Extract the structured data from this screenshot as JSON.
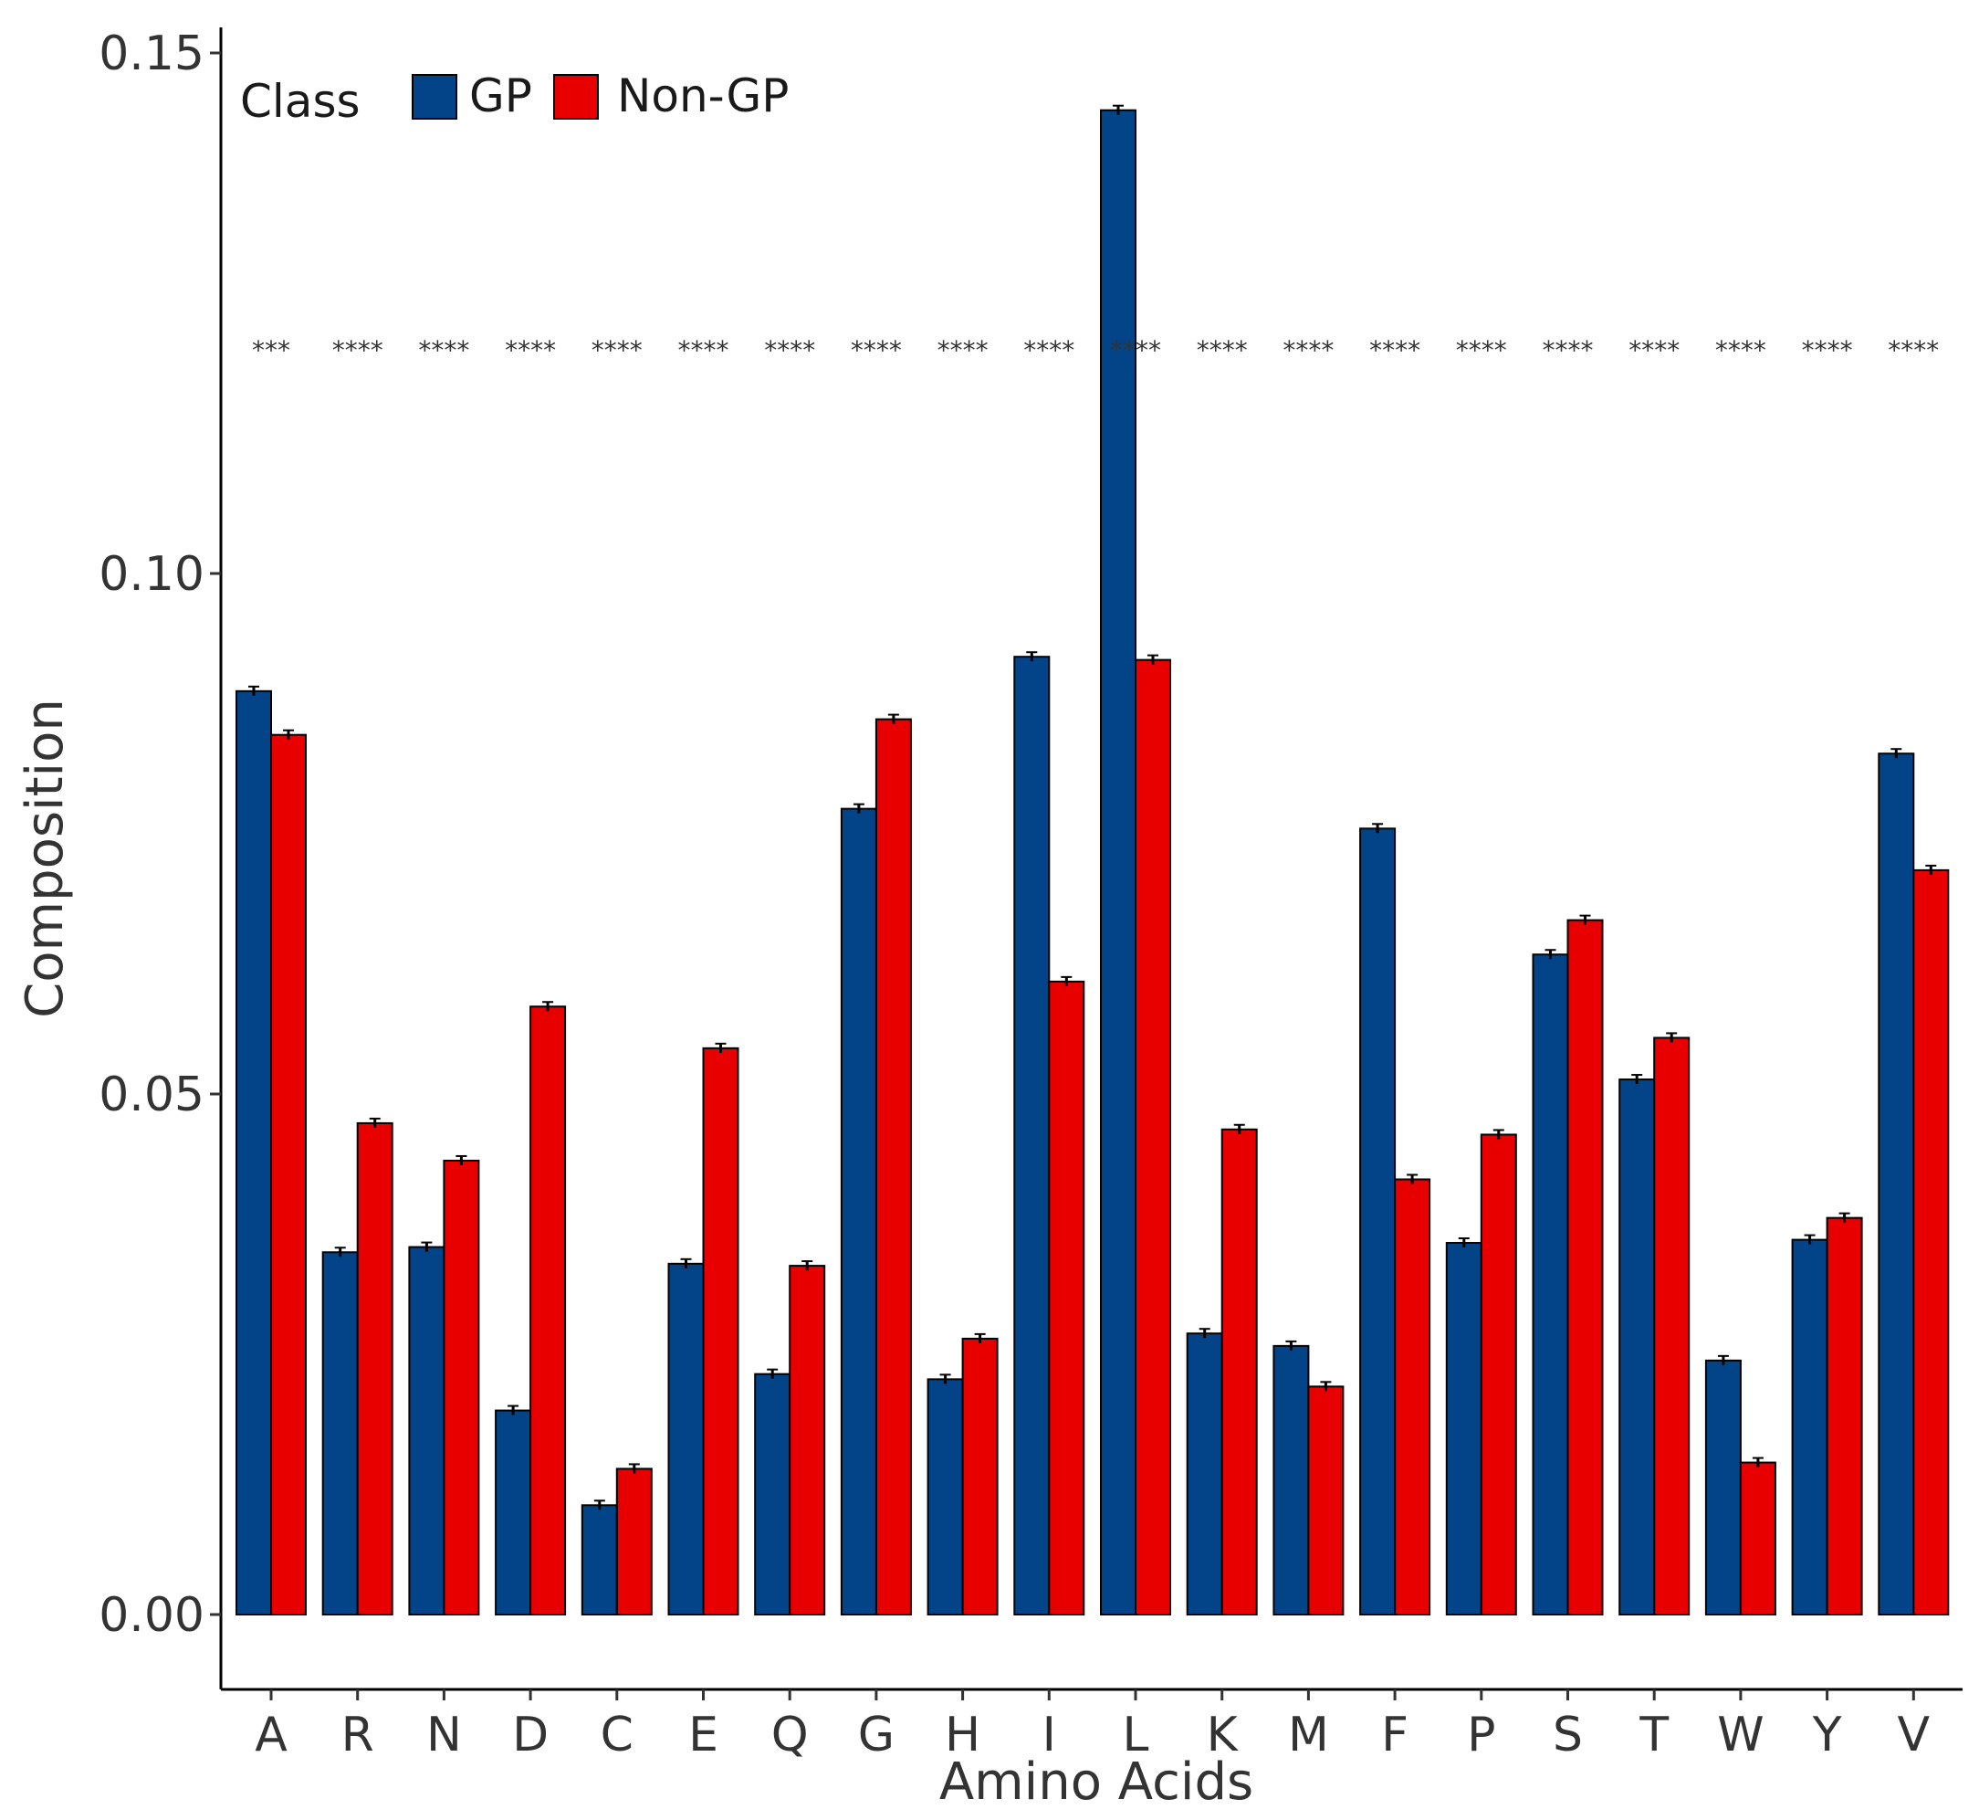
{
  "chart_data": {
    "type": "bar",
    "title": "",
    "xlabel": "Amino Acids",
    "ylabel": "Composition",
    "ylim": [
      -0.007,
      0.152
    ],
    "yticks": [
      "0.00",
      "0.05",
      "0.10",
      "0.15"
    ],
    "ytick_values": [
      0,
      0.05,
      0.1,
      0.15
    ],
    "grid": false,
    "legend": {
      "title": "Class",
      "position": "top-left",
      "entries": [
        "GP",
        "Non-GP"
      ]
    },
    "categories": [
      "A",
      "R",
      "N",
      "D",
      "C",
      "E",
      "Q",
      "G",
      "H",
      "I",
      "L",
      "K",
      "M",
      "F",
      "P",
      "S",
      "T",
      "W",
      "Y",
      "V"
    ],
    "series": [
      {
        "name": "GP",
        "color": "#034488",
        "values": [
          0.0887,
          0.0348,
          0.0353,
          0.0196,
          0.0105,
          0.0337,
          0.0231,
          0.0774,
          0.0226,
          0.092,
          0.1445,
          0.027,
          0.0258,
          0.0755,
          0.0357,
          0.0634,
          0.0514,
          0.0244,
          0.036,
          0.0827
        ]
      },
      {
        "name": "Non-GP",
        "color": "#E80000",
        "values": [
          0.0845,
          0.0472,
          0.0436,
          0.0584,
          0.014,
          0.0544,
          0.0335,
          0.086,
          0.0265,
          0.0608,
          0.0917,
          0.0466,
          0.0219,
          0.0418,
          0.0461,
          0.0667,
          0.0554,
          0.0146,
          0.0381,
          0.0715
        ]
      }
    ],
    "annotations": [
      "***",
      "****",
      "****",
      "****",
      "****",
      "****",
      "****",
      "****",
      "****",
      "****",
      "****",
      "****",
      "****",
      "****",
      "****",
      "****",
      "****",
      "****",
      "****",
      "****"
    ],
    "annotation_y": 0.1215
  }
}
